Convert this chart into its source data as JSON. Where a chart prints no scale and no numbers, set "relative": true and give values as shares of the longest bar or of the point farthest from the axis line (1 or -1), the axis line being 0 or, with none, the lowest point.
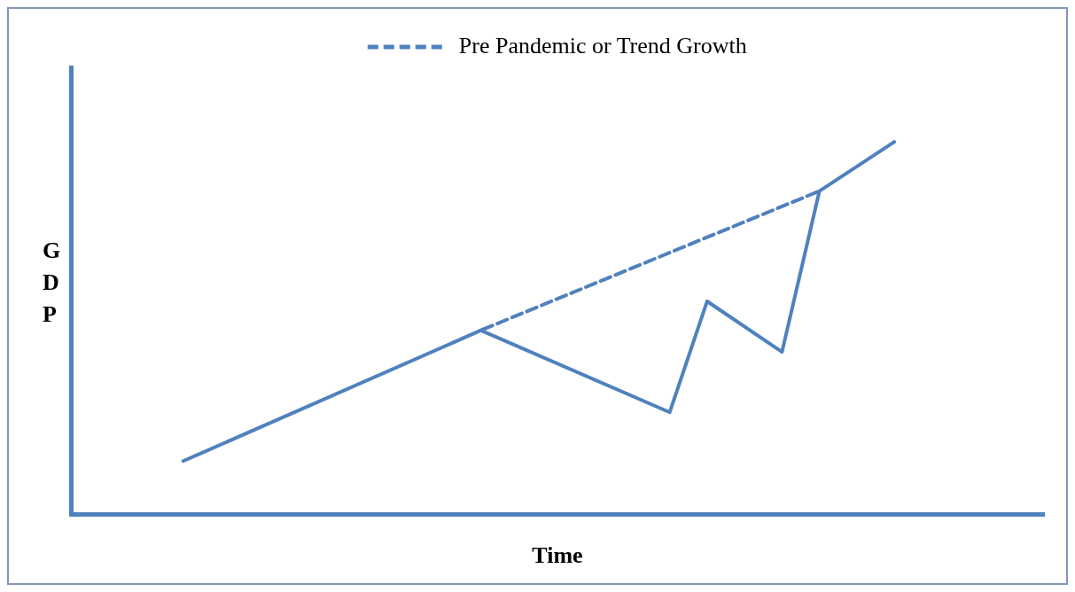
{
  "chart_data": {
    "type": "line",
    "relative": true,
    "xlabel": "Time",
    "ylabel": "GDP",
    "grid": false,
    "legend": "top",
    "line_style": "solid",
    "marker": "none",
    "categories": [
      null,
      null,
      null,
      null,
      null,
      null,
      null,
      null,
      null,
      null,
      null,
      null,
      null,
      null,
      null,
      null,
      null,
      null,
      null,
      null,
      null,
      null,
      null,
      null,
      null,
      null,
      null
    ],
    "series": [
      {
        "color": "#4f81bd",
        "values": [
          null,
          null,
          null,
          0.143,
          null,
          null,
          null,
          null,
          null,
          null,
          null,
          0.496,
          null,
          null,
          null,
          null,
          null,
          null,
          null,
          null,
          null,
          null,
          null,
          null,
          null,
          null,
          null
        ]
      },
      {
        "color": "#4f81bd",
        "values": [
          null,
          null,
          null,
          null,
          null,
          null,
          null,
          null,
          null,
          null,
          null,
          0.492,
          null,
          null,
          null,
          null,
          0.274,
          0.572,
          null,
          0.436,
          0.868,
          null,
          1,
          null,
          null,
          null,
          null
        ]
      },
      {
        "name": "Pre Pandemic or Trend Growth",
        "color": "#4f81bd",
        "line_style": "dashed",
        "values": [
          null,
          null,
          null,
          null,
          null,
          null,
          null,
          null,
          null,
          null,
          null,
          0.496,
          null,
          null,
          null,
          null,
          null,
          null,
          null,
          null,
          0.868,
          null,
          null,
          null,
          null,
          null,
          null
        ]
      }
    ]
  }
}
